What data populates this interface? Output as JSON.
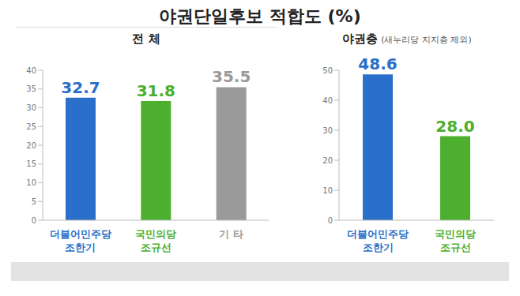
{
  "title": "야권단일후보 적합도 (%)",
  "chart_data": [
    {
      "type": "bar",
      "title": "전 체",
      "categories": [
        "더불어민주당\n조한기",
        "국민의당\n조규선",
        "기 타"
      ],
      "values": [
        32.7,
        31.8,
        35.5
      ],
      "colors": [
        "#2a6fc9",
        "#4caf2e",
        "#9a9a9a"
      ],
      "ylim": [
        0,
        40
      ],
      "yticks": [
        0,
        5,
        10,
        15,
        20,
        25,
        30,
        35,
        40
      ],
      "data_labels": true,
      "grid": false
    },
    {
      "type": "bar",
      "title": "야권층",
      "subtitle": "(새누리당 지지층 제외)",
      "categories": [
        "더불어민주당\n조한기",
        "국민의당\n조규선"
      ],
      "values": [
        48.6,
        28.0
      ],
      "value_labels": [
        "48.6",
        "28.0"
      ],
      "colors": [
        "#2a6fc9",
        "#4caf2e"
      ],
      "ylim": [
        0,
        50
      ],
      "yticks": [
        0,
        10,
        20,
        30,
        40,
        50
      ],
      "data_labels": true,
      "grid": false
    }
  ]
}
